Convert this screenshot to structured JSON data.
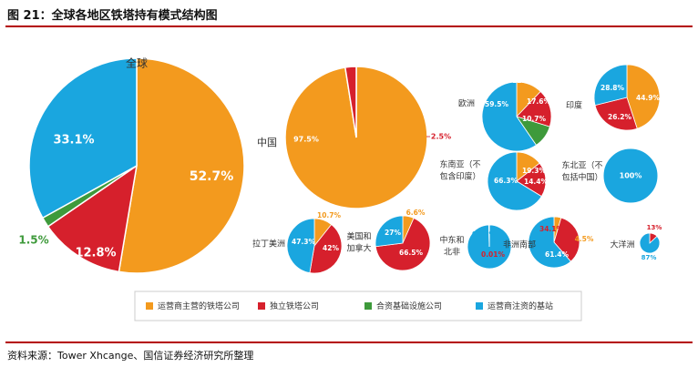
{
  "figure": {
    "title": "图 21：全球各地区铁塔持有模式结构图",
    "source": "资料来源：Tower Xhcange、国信证券经济研究所整理"
  },
  "colors": {
    "operator": "#f39a1e",
    "independent": "#d6202c",
    "jv": "#3e9a3b",
    "injected": "#1aa6df"
  },
  "chart_data": {
    "type": "pie",
    "legend_position": "bottom",
    "legend": [
      {
        "key": "operator",
        "label": "运营商主营的铁塔公司"
      },
      {
        "key": "independent",
        "label": "独立铁塔公司"
      },
      {
        "key": "jv",
        "label": "合资基础设施公司"
      },
      {
        "key": "injected",
        "label": "运营商注资的基站"
      }
    ],
    "pies": [
      {
        "id": "global",
        "name": "全球",
        "values": {
          "operator": 52.7,
          "independent": 12.8,
          "jv": 1.5,
          "injected": 33.1
        },
        "labels": {
          "operator": "52.7%",
          "independent": "12.8%",
          "jv": "1.5%",
          "injected": "33.1%"
        }
      },
      {
        "id": "china",
        "name": "中国",
        "values": {
          "operator": 97.5,
          "independent": 2.5
        },
        "labels": {
          "operator": "97.5%",
          "independent": "2.5%"
        }
      },
      {
        "id": "europe",
        "name": "欧洲",
        "values": {
          "operator": 12.1,
          "independent": 17.6,
          "jv": 10.7,
          "injected": 59.5
        },
        "labels": {
          "operator": "12.1%",
          "independent": "17.6%",
          "jv": "10.7%",
          "injected": "59.5%"
        }
      },
      {
        "id": "india",
        "name": "印度",
        "values": {
          "operator": 44.9,
          "independent": 26.2,
          "injected": 28.8
        },
        "labels": {
          "operator": "44.9%",
          "independent": "26.2%",
          "injected": "28.8%"
        }
      },
      {
        "id": "se_asia",
        "name": "东南亚（不包含印度）",
        "values": {
          "operator": 14.4,
          "independent": 19.3,
          "injected": 66.3
        },
        "labels": {
          "operator": "14.4%",
          "independent": "19.3%",
          "injected": "66.3%"
        }
      },
      {
        "id": "ne_asia",
        "name": "东北亚（不包括中国）",
        "values": {
          "injected": 100
        },
        "labels": {
          "injected": "100%"
        }
      },
      {
        "id": "latam",
        "name": "拉丁美洲",
        "values": {
          "operator": 10.7,
          "independent": 42,
          "injected": 47.3
        },
        "labels": {
          "operator": "10.7%",
          "independent": "42%",
          "injected": "47.3%"
        }
      },
      {
        "id": "us_ca",
        "name": "美国和加拿大",
        "values": {
          "operator": 6.6,
          "independent": 66.5,
          "injected": 27
        },
        "labels": {
          "operator": "6.6%",
          "independent": "66.5%",
          "injected": "27%"
        }
      },
      {
        "id": "me_na",
        "name": "中东和北非",
        "values": {
          "injected": 99.5,
          "jv": 0.4,
          "operator": 0.01
        },
        "labels": {
          "injected": "99.5%",
          "operator": "0.01%"
        }
      },
      {
        "id": "africa_s",
        "name": "非洲南部",
        "values": {
          "operator": 4.5,
          "independent": 34.1,
          "injected": 61.4
        },
        "labels": {
          "operator": "4.5%",
          "independent": "34.1%",
          "injected": "61.4%"
        }
      },
      {
        "id": "oceania",
        "name": "大洋洲",
        "values": {
          "independent": 13,
          "injected": 87
        },
        "labels": {
          "independent": "13%",
          "injected": "87%"
        }
      }
    ]
  }
}
